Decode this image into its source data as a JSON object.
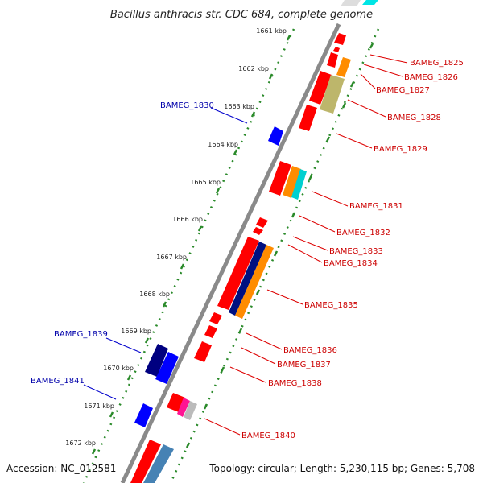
{
  "title": "Bacillus anthracis str. CDC 684, complete genome",
  "footer": {
    "accession": "Accession: NC_012581",
    "topology": "Topology: circular; Length: 5,230,115 bp; Genes: 5,708"
  },
  "colors": {
    "forward_strand": "#ff0000",
    "reverse_strand": "#0000ff",
    "forward_label": "#cc0000",
    "reverse_label": "#0000aa",
    "backbone": "#888888",
    "ticks": "#228822"
  },
  "ticks": [
    "1661 kbp",
    "1662 kbp",
    "1663 kbp",
    "1664 kbp",
    "1665 kbp",
    "1666 kbp",
    "1667 kbp",
    "1668 kbp",
    "1669 kbp",
    "1670 kbp",
    "1671 kbp",
    "1672 kbp"
  ],
  "forward_genes": [
    "BAMEG_1825",
    "BAMEG_1826",
    "BAMEG_1827",
    "BAMEG_1828",
    "BAMEG_1829",
    "BAMEG_1831",
    "BAMEG_1832",
    "BAMEG_1833",
    "BAMEG_1834",
    "BAMEG_1835",
    "BAMEG_1836",
    "BAMEG_1837",
    "BAMEG_1838",
    "BAMEG_1840"
  ],
  "reverse_genes": [
    "BAMEG_1830",
    "BAMEG_1839",
    "BAMEG_1841"
  ]
}
